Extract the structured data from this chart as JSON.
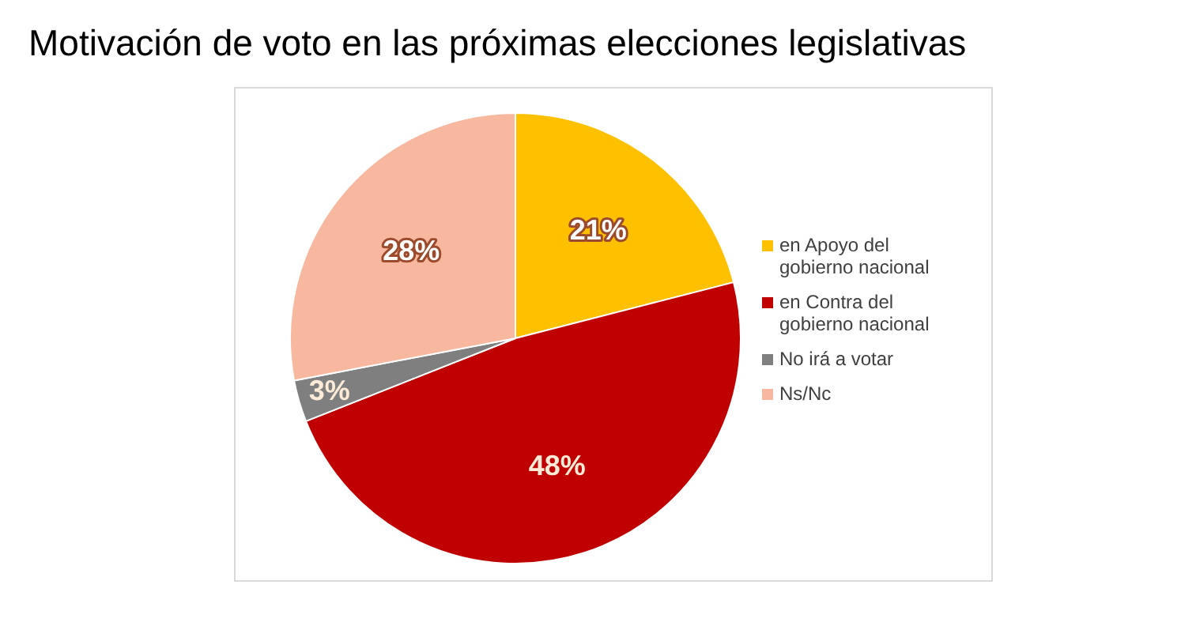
{
  "chart_data": {
    "type": "pie",
    "title": "Motivación de voto en las próximas elecciones legislativas",
    "categories": [
      "en Apoyo del gobierno nacional",
      "en Contra del gobierno nacional",
      "No irá a votar",
      "Ns/Nc"
    ],
    "values": [
      21,
      48,
      3,
      28
    ],
    "colors": [
      "#ffc000",
      "#c00000",
      "#7f7f7f",
      "#f8b8a0"
    ],
    "value_labels": [
      "21%",
      "48%",
      "3%",
      "28%"
    ],
    "legend": "right"
  }
}
